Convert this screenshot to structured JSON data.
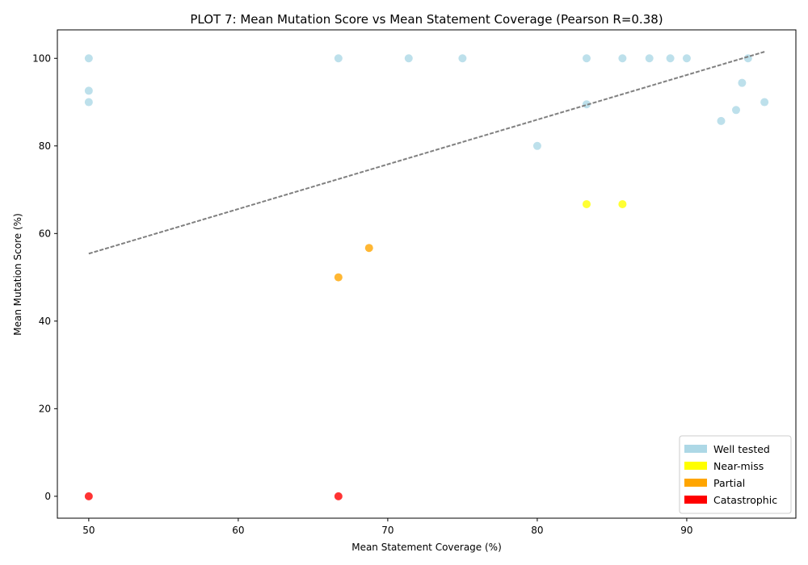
{
  "chart_data": {
    "type": "scatter",
    "title": "PLOT 7: Mean Mutation Score vs Mean Statement Coverage (Pearson R=0.38)",
    "xlabel": "Mean Statement Coverage (%)",
    "ylabel": "Mean Mutation Score (%)",
    "xlim": [
      47.9,
      97.3
    ],
    "ylim": [
      -5.0,
      106.5
    ],
    "xticks": [
      50,
      60,
      70,
      80,
      90
    ],
    "yticks": [
      0,
      20,
      40,
      60,
      80,
      100
    ],
    "grid": false,
    "legend_position": "lower-right",
    "series": [
      {
        "name": "Well tested",
        "color": "#add8e6",
        "points": [
          [
            50.0,
            100.0
          ],
          [
            50.0,
            92.6
          ],
          [
            50.0,
            90.0
          ],
          [
            66.7,
            100.0
          ],
          [
            71.4,
            100.0
          ],
          [
            75.0,
            100.0
          ],
          [
            80.0,
            80.0
          ],
          [
            83.3,
            100.0
          ],
          [
            83.3,
            89.5
          ],
          [
            85.7,
            100.0
          ],
          [
            87.5,
            100.0
          ],
          [
            88.9,
            100.0
          ],
          [
            90.0,
            100.0
          ],
          [
            92.3,
            85.7
          ],
          [
            93.3,
            88.2
          ],
          [
            93.7,
            94.4
          ],
          [
            94.1,
            100.0
          ],
          [
            95.2,
            90.0
          ]
        ]
      },
      {
        "name": "Near-miss",
        "color": "#ffff00",
        "points": [
          [
            83.3,
            66.7
          ],
          [
            85.7,
            66.7
          ]
        ]
      },
      {
        "name": "Partial",
        "color": "#ffa500",
        "points": [
          [
            66.7,
            50.0
          ],
          [
            68.75,
            56.7
          ]
        ]
      },
      {
        "name": "Catastrophic",
        "color": "#ff0000",
        "points": [
          [
            50.0,
            0.0
          ],
          [
            66.7,
            0.0
          ]
        ]
      }
    ],
    "trend_line": {
      "x": [
        50.0,
        95.2
      ],
      "y": [
        55.4,
        101.5
      ],
      "color": "#808080",
      "style": "dashed"
    }
  }
}
